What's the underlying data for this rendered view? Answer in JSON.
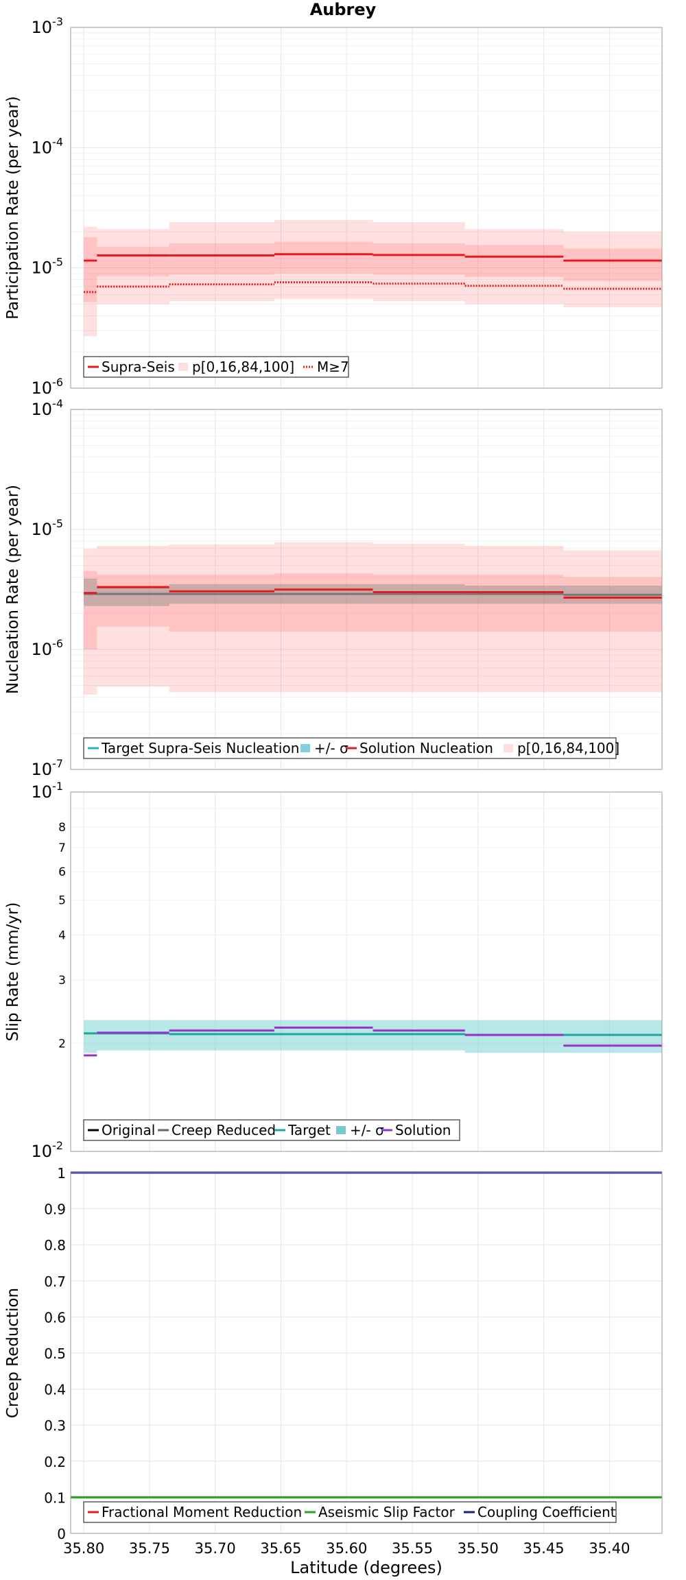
{
  "chart_data": [
    {
      "type": "line",
      "panel": "participation",
      "title": "Aubrey",
      "ylabel": "Participation Rate (per year)",
      "yscale": "log",
      "ylim": [
        1e-06,
        0.001
      ],
      "xlim": [
        35.81,
        35.36
      ],
      "xreversed": true,
      "grid": true,
      "legend_position": "bottom-left",
      "y_tick_labels": [
        {
          "base": "10",
          "exp": "-6",
          "value": 1e-06
        },
        {
          "base": "10",
          "exp": "-5",
          "value": 1e-05
        },
        {
          "base": "10",
          "exp": "-4",
          "value": 0.0001
        },
        {
          "base": "10",
          "exp": "-3",
          "value": 0.001
        }
      ],
      "segments": [
        {
          "x0": 35.8,
          "x1": 35.79,
          "mean": 1.15e-05,
          "mag7": 6.3e-06,
          "p0": 2.7e-06,
          "p16": 5.2e-06,
          "p84": 1.8e-05,
          "p100": 2.2e-05
        },
        {
          "x0": 35.79,
          "x1": 35.735,
          "mean": 1.27e-05,
          "mag7": 7e-06,
          "p0": 5e-06,
          "p16": 8.5e-06,
          "p84": 1.5e-05,
          "p100": 2.1e-05
        },
        {
          "x0": 35.735,
          "x1": 35.655,
          "mean": 1.27e-05,
          "mag7": 7.3e-06,
          "p0": 5.3e-06,
          "p16": 8.8e-06,
          "p84": 1.6e-05,
          "p100": 2.4e-05
        },
        {
          "x0": 35.655,
          "x1": 35.58,
          "mean": 1.3e-05,
          "mag7": 7.6e-06,
          "p0": 5.5e-06,
          "p16": 9e-06,
          "p84": 1.65e-05,
          "p100": 2.5e-05
        },
        {
          "x0": 35.58,
          "x1": 35.51,
          "mean": 1.28e-05,
          "mag7": 7.4e-06,
          "p0": 5.3e-06,
          "p16": 8.8e-06,
          "p84": 1.6e-05,
          "p100": 2.4e-05
        },
        {
          "x0": 35.51,
          "x1": 35.435,
          "mean": 1.24e-05,
          "mag7": 7.1e-06,
          "p0": 5e-06,
          "p16": 8.4e-06,
          "p84": 1.55e-05,
          "p100": 2.1e-05
        },
        {
          "x0": 35.435,
          "x1": 35.36,
          "mean": 1.15e-05,
          "mag7": 6.7e-06,
          "p0": 4.7e-06,
          "p16": 7.8e-06,
          "p84": 1.45e-05,
          "p100": 2e-05
        }
      ],
      "legend": [
        "Supra-Seis",
        "p[0,16,84,100]",
        "M≥7"
      ],
      "colors": {
        "mean": "#e41a1c",
        "band_outer": "#ffc8c8",
        "band_inner": "#ff9c9c"
      }
    },
    {
      "type": "line",
      "panel": "nucleation",
      "ylabel": "Nucleation Rate (per year)",
      "yscale": "log",
      "ylim": [
        1e-07,
        0.0001
      ],
      "xlim": [
        35.81,
        35.36
      ],
      "xreversed": true,
      "grid": true,
      "legend_position": "bottom-left",
      "y_tick_labels": [
        {
          "base": "10",
          "exp": "-7",
          "value": 1e-07
        },
        {
          "base": "10",
          "exp": "-6",
          "value": 1e-06
        },
        {
          "base": "10",
          "exp": "-5",
          "value": 1e-05
        },
        {
          "base": "10",
          "exp": "-4",
          "value": 0.0001
        }
      ],
      "segments": [
        {
          "x0": 35.8,
          "x1": 35.79,
          "target": 2.9e-06,
          "sig_lo": 2.3e-06,
          "sig_hi": 3.9e-06,
          "sol": 2.95e-06,
          "p0": 4.2e-07,
          "p16": 1e-06,
          "p84": 4.5e-06,
          "p100": 6.9e-06
        },
        {
          "x0": 35.79,
          "x1": 35.735,
          "target": 2.9e-06,
          "sig_lo": 2.3e-06,
          "sig_hi": 3.4e-06,
          "sol": 3.3e-06,
          "p0": 4.9e-07,
          "p16": 1.55e-06,
          "p84": 4.2e-06,
          "p100": 7.3e-06
        },
        {
          "x0": 35.735,
          "x1": 35.655,
          "target": 2.9e-06,
          "sig_lo": 2.4e-06,
          "sig_hi": 3.5e-06,
          "sol": 3.05e-06,
          "p0": 4.4e-07,
          "p16": 1.4e-06,
          "p84": 4.2e-06,
          "p100": 7.5e-06
        },
        {
          "x0": 35.655,
          "x1": 35.58,
          "target": 2.9e-06,
          "sig_lo": 2.4e-06,
          "sig_hi": 3.5e-06,
          "sol": 3.15e-06,
          "p0": 4.4e-07,
          "p16": 1.4e-06,
          "p84": 4.3e-06,
          "p100": 7.8e-06
        },
        {
          "x0": 35.58,
          "x1": 35.51,
          "target": 2.9e-06,
          "sig_lo": 2.4e-06,
          "sig_hi": 3.5e-06,
          "sol": 3e-06,
          "p0": 4.4e-07,
          "p16": 1.4e-06,
          "p84": 4.2e-06,
          "p100": 7.6e-06
        },
        {
          "x0": 35.51,
          "x1": 35.435,
          "target": 2.9e-06,
          "sig_lo": 2.4e-06,
          "sig_hi": 3.4e-06,
          "sol": 3e-06,
          "p0": 4.4e-07,
          "p16": 1.4e-06,
          "p84": 4.2e-06,
          "p100": 7.3e-06
        },
        {
          "x0": 35.435,
          "x1": 35.36,
          "target": 2.85e-06,
          "sig_lo": 2.4e-06,
          "sig_hi": 3.4e-06,
          "sol": 2.7e-06,
          "p0": 4.4e-07,
          "p16": 1.4e-06,
          "p84": 4e-06,
          "p100": 6.7e-06
        }
      ],
      "legend": [
        "Target Supra-Seis Nucleation",
        "+/- σ",
        "Solution Nucleation",
        "p[0,16,84,100]"
      ],
      "colors": {
        "target": "#2cb0c8",
        "sigma_band": "#a9a9a9",
        "solution": "#e41a1c",
        "band_outer": "#ffc8c8",
        "band_inner": "#ff9c9c"
      }
    },
    {
      "type": "line",
      "panel": "slip-rate",
      "ylabel": "Slip Rate (mm/yr)",
      "yscale": "log",
      "ylim": [
        0.01,
        0.1
      ],
      "xlim": [
        35.81,
        35.36
      ],
      "xreversed": true,
      "grid": true,
      "legend_position": "bottom-left",
      "y_tick_labels": [
        {
          "base": "10",
          "exp": "-2",
          "value": 0.01
        },
        {
          "base": "10",
          "exp": "-1",
          "value": 0.1
        }
      ],
      "y_minor_tick_labels": [
        {
          "label": "2",
          "value": 0.02
        },
        {
          "label": "3",
          "value": 0.03
        },
        {
          "label": "4",
          "value": 0.04
        },
        {
          "label": "5",
          "value": 0.05
        },
        {
          "label": "6",
          "value": 0.06
        },
        {
          "label": "7",
          "value": 0.07
        },
        {
          "label": "8",
          "value": 0.08
        }
      ],
      "segments": [
        {
          "x0": 35.8,
          "x1": 35.79,
          "target": 0.0213,
          "sig_lo": 0.0188,
          "sig_hi": 0.0232,
          "solution": 0.0185
        },
        {
          "x0": 35.79,
          "x1": 35.735,
          "target": 0.0213,
          "sig_lo": 0.0191,
          "sig_hi": 0.0232,
          "solution": 0.0214
        },
        {
          "x0": 35.735,
          "x1": 35.655,
          "target": 0.0212,
          "sig_lo": 0.0191,
          "sig_hi": 0.0232,
          "solution": 0.0217
        },
        {
          "x0": 35.655,
          "x1": 35.58,
          "target": 0.0212,
          "sig_lo": 0.0191,
          "sig_hi": 0.0232,
          "solution": 0.0221
        },
        {
          "x0": 35.58,
          "x1": 35.51,
          "target": 0.0212,
          "sig_lo": 0.0191,
          "sig_hi": 0.0232,
          "solution": 0.0217
        },
        {
          "x0": 35.51,
          "x1": 35.435,
          "target": 0.0211,
          "sig_lo": 0.0188,
          "sig_hi": 0.0232,
          "solution": 0.0211
        },
        {
          "x0": 35.435,
          "x1": 35.36,
          "target": 0.0211,
          "sig_lo": 0.0188,
          "sig_hi": 0.0232,
          "solution": 0.0197
        }
      ],
      "legend": [
        "Original",
        "Creep Reduced",
        "Target",
        "+/- σ",
        "Solution"
      ],
      "colors": {
        "original": "#000000",
        "creep_reduced": "#666666",
        "target": "#1aa89c",
        "sigma_band": "#b4e4e4",
        "solution": "#9932cc"
      }
    },
    {
      "type": "line",
      "panel": "creep-reduction",
      "ylabel": "Creep Reduction",
      "xlabel": "Latitude (degrees)",
      "yscale": "linear",
      "ylim": [
        0,
        1
      ],
      "xlim": [
        35.81,
        35.36
      ],
      "xreversed": true,
      "grid": true,
      "legend_position": "bottom-left",
      "y_tick_labels": [
        "0",
        "0.1",
        "0.2",
        "0.3",
        "0.4",
        "0.5",
        "0.6",
        "0.7",
        "0.8",
        "0.9",
        "1"
      ],
      "x_tick_labels": [
        "35.80",
        "35.75",
        "35.70",
        "35.65",
        "35.60",
        "35.55",
        "35.50",
        "35.45",
        "35.40"
      ],
      "x_ticks": [
        35.8,
        35.75,
        35.7,
        35.65,
        35.6,
        35.55,
        35.5,
        35.45,
        35.4
      ],
      "series": [
        {
          "name": "Fractional Moment Reduction",
          "value": 0.1,
          "color": "#e41a1c"
        },
        {
          "name": "Aseismic Slip Factor",
          "value": 0.1,
          "color": "#22aa22"
        },
        {
          "name": "Coupling Coefficient",
          "value": 1.0,
          "color": "#1a1a99"
        }
      ]
    }
  ]
}
